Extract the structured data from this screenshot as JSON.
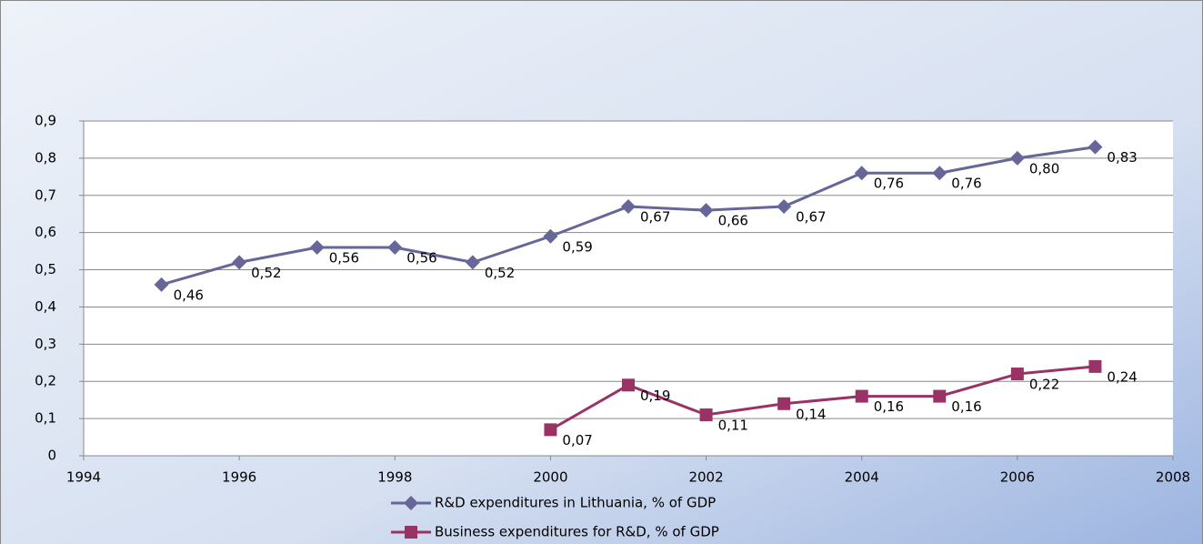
{
  "chart_data": {
    "type": "line",
    "x": [
      1995,
      1996,
      1997,
      1998,
      1999,
      2000,
      2001,
      2002,
      2003,
      2004,
      2005,
      2006,
      2007
    ],
    "series": [
      {
        "name": "R&D expenditures in Lithuania, % of GDP",
        "color": "#666699",
        "marker": "diamond",
        "values": [
          0.46,
          0.52,
          0.56,
          0.56,
          0.52,
          0.59,
          0.67,
          0.66,
          0.67,
          0.76,
          0.76,
          0.8,
          0.83
        ],
        "value_labels": [
          "0,46",
          "0,52",
          "0,56",
          "0,56",
          "0,52",
          "0,59",
          "0,67",
          "0,66",
          "0,67",
          "0,76",
          "0,76",
          "0,80",
          "0,83"
        ]
      },
      {
        "name": "Business expenditures for R&D, % of GDP",
        "color": "#993366",
        "marker": "square",
        "values": [
          null,
          null,
          null,
          null,
          null,
          0.07,
          0.19,
          0.11,
          0.14,
          0.16,
          0.16,
          0.22,
          0.24
        ],
        "value_labels": [
          null,
          null,
          null,
          null,
          null,
          "0,07",
          "0,19",
          "0,11",
          "0,14",
          "0,16",
          "0,16",
          "0,22",
          "0,24"
        ]
      }
    ],
    "xlim": [
      1994,
      2008
    ],
    "xticks": [
      1994,
      1996,
      1998,
      2000,
      2002,
      2004,
      2006,
      2008
    ],
    "ylim": [
      0,
      0.9
    ],
    "yticks": [
      0,
      {
        "value": 0.1,
        "label": "0,1"
      },
      {
        "value": 0.2,
        "label": "0,2"
      },
      {
        "value": 0.3,
        "label": "0,3"
      },
      {
        "value": 0.4,
        "label": "0,4"
      },
      {
        "value": 0.5,
        "label": "0,5"
      },
      {
        "value": 0.6,
        "label": "0,6"
      },
      {
        "value": 0.7,
        "label": "0,7"
      },
      {
        "value": 0.8,
        "label": "0,8"
      },
      {
        "value": 0.9,
        "label": "0,9"
      }
    ],
    "grid": true,
    "legend": "bottom"
  }
}
